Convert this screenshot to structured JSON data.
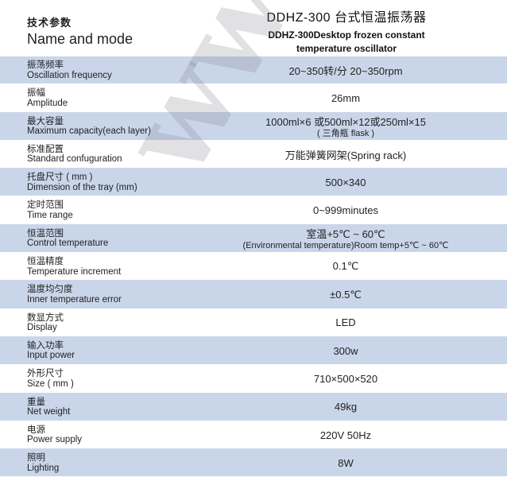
{
  "header": {
    "left_zh": "技术参数",
    "left_en": "Name and mode",
    "title": "DDHZ-300 台式恒温振荡器",
    "subtitle_line1": "DDHZ-300Desktop frozen constant",
    "subtitle_line2": "temperature oscillator"
  },
  "rows": [
    {
      "zh": "振荡频率",
      "en": "Oscillation frequency",
      "value": "20~350转/分    20~350rpm",
      "value2": ""
    },
    {
      "zh": "振幅",
      "en": "Amplitude",
      "value": "26mm",
      "value2": ""
    },
    {
      "zh": "最大容量",
      "en": "Maximum capacity(each layer)",
      "value": "1000ml×6 或500ml×12或250ml×15",
      "value2": "( 三角瓶 flask )"
    },
    {
      "zh": "标准配置",
      "en": "Standard confuguration",
      "value": "万能弹簧网架(Spring rack)",
      "value2": ""
    },
    {
      "zh": "托盘尺寸 ( mm )",
      "en": "Dimension of the tray (mm)",
      "value": "500×340",
      "value2": ""
    },
    {
      "zh": "定时范围",
      "en": "Time range",
      "value": "0~999minutes",
      "value2": ""
    },
    {
      "zh": "恒温范围",
      "en": "Control temperature",
      "value": "室温+5℃ ~ 60℃",
      "value2": "(Environmental temperature)Room temp+5℃ ~ 60℃"
    },
    {
      "zh": "恒温精度",
      "en": "Temperature increment",
      "value": "0.1℃",
      "value2": ""
    },
    {
      "zh": "温度均匀度",
      "en": "Inner temperature error",
      "value": "±0.5℃",
      "value2": ""
    },
    {
      "zh": "数显方式",
      "en": "Display",
      "value": "LED",
      "value2": ""
    },
    {
      "zh": "输入功率",
      "en": "Input power",
      "value": "300w",
      "value2": ""
    },
    {
      "zh": "外形尺寸",
      "en": "Size ( mm )",
      "value": "710×500×520",
      "value2": ""
    },
    {
      "zh": "重量",
      "en": "Net weight",
      "value": "49kg",
      "value2": ""
    },
    {
      "zh": "电源",
      "en": "Power supply",
      "value": "220V  50Hz",
      "value2": ""
    },
    {
      "zh": "照明",
      "en": "Lighting",
      "value": "8W",
      "value2": ""
    }
  ],
  "watermark": "www.sb.com"
}
